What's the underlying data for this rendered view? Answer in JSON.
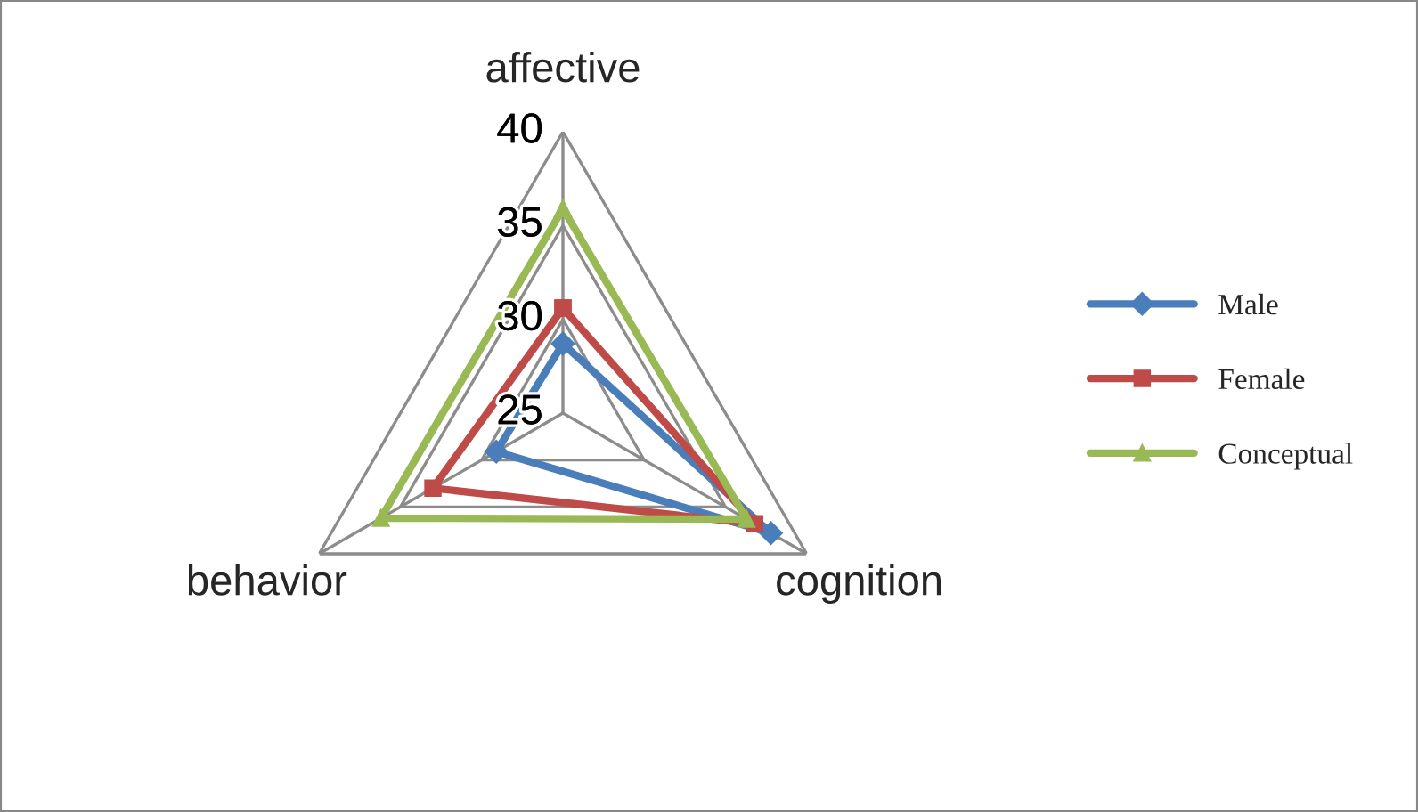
{
  "chart_data": {
    "type": "radar",
    "categories": [
      "affective",
      "cognition",
      "behavior"
    ],
    "ylim": [
      25,
      40
    ],
    "yticks": [
      25,
      30,
      35,
      40
    ],
    "series": [
      {
        "name": "Male",
        "color": "#4a7ebb",
        "values": [
          28.7,
          37.8,
          29.1
        ],
        "marker": "diamond"
      },
      {
        "name": "Female",
        "color": "#be4b48",
        "values": [
          30.6,
          36.8,
          33
        ],
        "marker": "square"
      },
      {
        "name": "Conceptual",
        "color": "#98b954",
        "values": [
          35.9,
          36.3,
          36.2
        ],
        "marker": "triangle"
      }
    ],
    "grid": true,
    "legend": "right"
  }
}
